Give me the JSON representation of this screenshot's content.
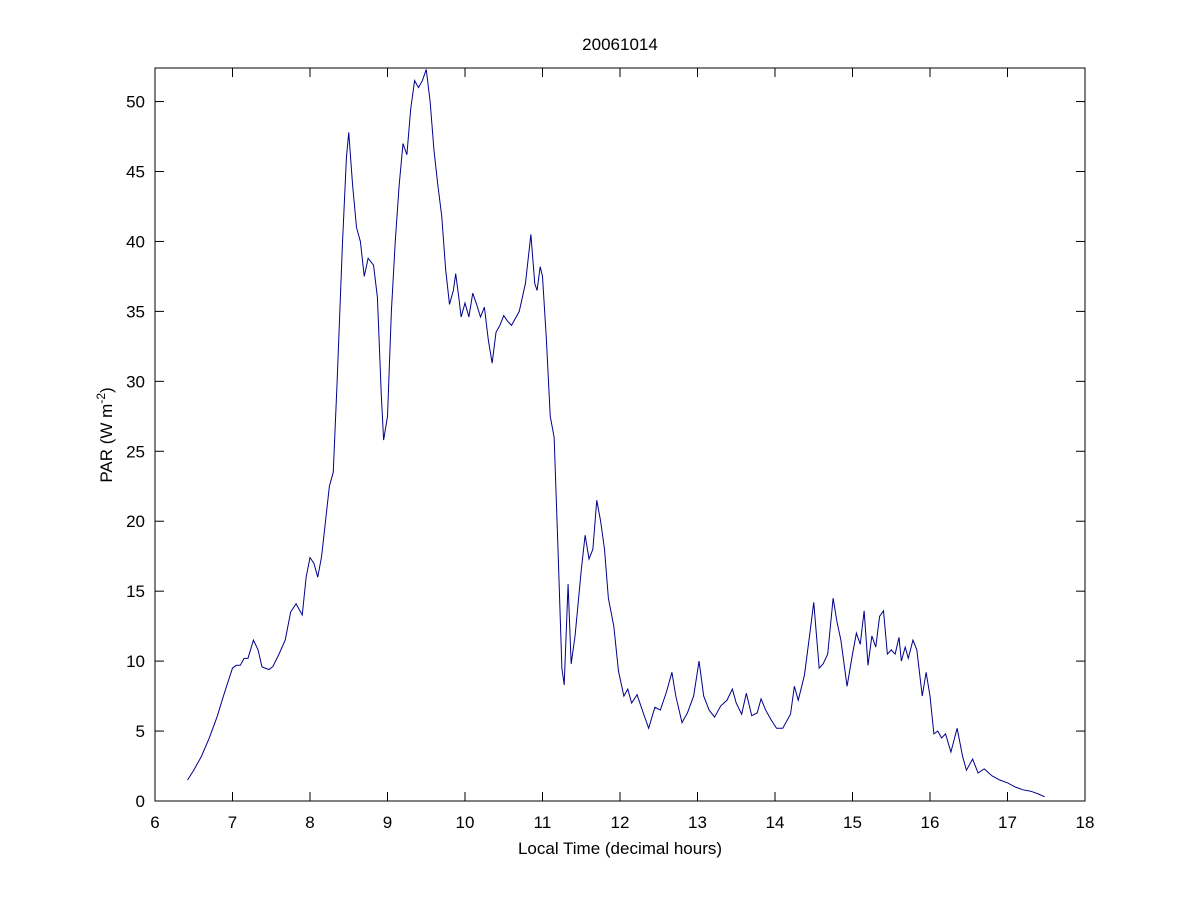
{
  "chart_data": {
    "type": "line",
    "title": "20061014",
    "xlabel": "Local Time (decimal hours)",
    "ylabel": [
      "PAR (W m",
      "-2",
      ")"
    ],
    "xlim": [
      6,
      18
    ],
    "xticks": [
      6,
      7,
      8,
      9,
      10,
      11,
      12,
      13,
      14,
      15,
      16,
      17,
      18
    ],
    "ylim": [
      0,
      52.4
    ],
    "yticks": [
      0,
      5,
      10,
      15,
      20,
      25,
      30,
      35,
      40,
      45,
      50
    ],
    "x": [
      6.42,
      6.5,
      6.6,
      6.7,
      6.8,
      6.9,
      7.0,
      7.05,
      7.1,
      7.15,
      7.2,
      7.27,
      7.33,
      7.38,
      7.42,
      7.47,
      7.52,
      7.6,
      7.68,
      7.75,
      7.82,
      7.9,
      7.95,
      8.0,
      8.05,
      8.1,
      8.15,
      8.2,
      8.25,
      8.3,
      8.35,
      8.42,
      8.47,
      8.5,
      8.55,
      8.6,
      8.65,
      8.7,
      8.75,
      8.82,
      8.87,
      8.92,
      8.95,
      9.0,
      9.05,
      9.1,
      9.15,
      9.2,
      9.25,
      9.3,
      9.35,
      9.4,
      9.45,
      9.5,
      9.55,
      9.6,
      9.65,
      9.7,
      9.75,
      9.8,
      9.85,
      9.88,
      9.92,
      9.95,
      10.0,
      10.05,
      10.1,
      10.15,
      10.2,
      10.25,
      10.3,
      10.35,
      10.4,
      10.45,
      10.5,
      10.55,
      10.6,
      10.7,
      10.78,
      10.85,
      10.9,
      10.93,
      10.97,
      11.0,
      11.05,
      11.1,
      11.15,
      11.2,
      11.25,
      11.28,
      11.33,
      11.37,
      11.42,
      11.5,
      11.55,
      11.6,
      11.65,
      11.7,
      11.75,
      11.8,
      11.85,
      11.92,
      11.98,
      12.05,
      12.1,
      12.15,
      12.22,
      12.3,
      12.37,
      12.45,
      12.52,
      12.6,
      12.67,
      12.72,
      12.8,
      12.87,
      12.95,
      13.02,
      13.08,
      13.15,
      13.22,
      13.3,
      13.38,
      13.45,
      13.5,
      13.57,
      13.63,
      13.7,
      13.77,
      13.82,
      13.88,
      13.95,
      14.02,
      14.1,
      14.2,
      14.25,
      14.3,
      14.38,
      14.45,
      14.5,
      14.57,
      14.62,
      14.68,
      14.75,
      14.8,
      14.85,
      14.93,
      15.0,
      15.05,
      15.1,
      15.15,
      15.2,
      15.25,
      15.3,
      15.35,
      15.4,
      15.45,
      15.5,
      15.55,
      15.6,
      15.63,
      15.68,
      15.72,
      15.78,
      15.83,
      15.9,
      15.95,
      16.0,
      16.05,
      16.1,
      16.15,
      16.2,
      16.27,
      16.35,
      16.42,
      16.47,
      16.55,
      16.62,
      16.7,
      16.8,
      16.9,
      17.0,
      17.1,
      17.2,
      17.3,
      17.4,
      17.48
    ],
    "series": [
      {
        "color": "#00008b",
        "values": [
          1.5,
          2.2,
          3.2,
          4.5,
          6,
          7.8,
          9.5,
          9.7,
          9.7,
          10.2,
          10.2,
          11.5,
          10.8,
          9.6,
          9.5,
          9.4,
          9.6,
          10.5,
          11.5,
          13.5,
          14.1,
          13.3,
          16,
          17.4,
          17,
          16,
          17.5,
          20,
          22.5,
          23.5,
          30,
          40,
          46,
          47.8,
          44,
          41,
          40,
          37.5,
          38.8,
          38.3,
          36,
          29,
          25.8,
          27.5,
          35,
          40,
          44,
          47,
          46.2,
          49.5,
          51.5,
          51,
          51.5,
          52.3,
          50,
          46.5,
          44,
          41.8,
          38,
          35.5,
          36.5,
          37.7,
          36,
          34.6,
          35.6,
          34.6,
          36.3,
          35.5,
          34.6,
          35.3,
          33,
          31.3,
          33.5,
          34,
          34.7,
          34.3,
          34,
          35,
          37,
          40.5,
          37,
          36.5,
          38.2,
          37.5,
          33,
          27.5,
          26,
          18,
          9.5,
          8.3,
          15.5,
          9.8,
          11.8,
          16.5,
          19,
          17.3,
          18,
          21.5,
          20,
          18,
          14.5,
          12.5,
          9.3,
          7.5,
          8,
          7,
          7.6,
          6.3,
          5.2,
          6.7,
          6.5,
          7.8,
          9.2,
          7.5,
          5.6,
          6.3,
          7.5,
          10,
          7.5,
          6.5,
          6,
          6.8,
          7.2,
          8,
          7,
          6.2,
          7.7,
          6.1,
          6.3,
          7.3,
          6.5,
          5.8,
          5.2,
          5.2,
          6.2,
          8.2,
          7.2,
          9,
          12,
          14.2,
          9.5,
          9.8,
          10.5,
          14.5,
          12.8,
          11.5,
          8.2,
          10.5,
          12,
          11.2,
          13.6,
          9.7,
          11.8,
          11,
          13.2,
          13.6,
          10.5,
          10.8,
          10.5,
          11.7,
          10,
          11,
          10.2,
          11.5,
          10.8,
          7.5,
          9.2,
          7.5,
          4.8,
          5,
          4.5,
          4.8,
          3.5,
          5.2,
          3.2,
          2.2,
          3,
          2,
          2.3,
          1.8,
          1.5,
          1.3,
          1,
          0.8,
          0.7,
          0.5,
          0.3
        ]
      }
    ]
  }
}
